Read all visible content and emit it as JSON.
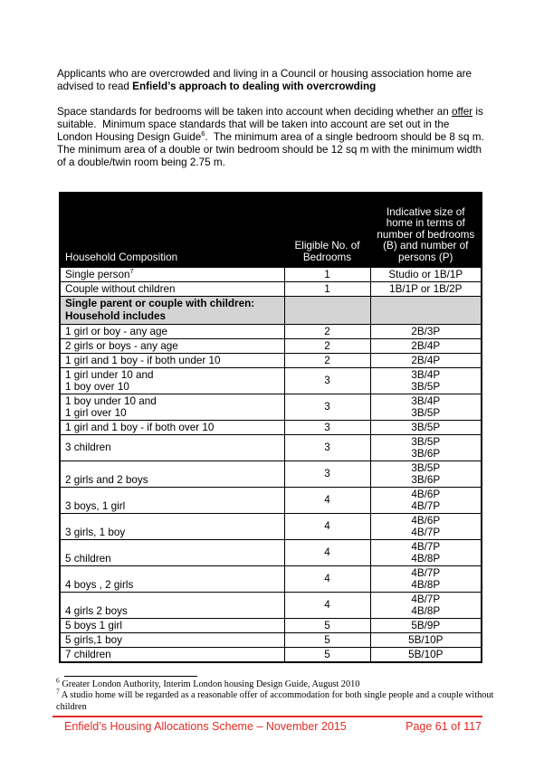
{
  "colors": {
    "accent_red": "#e32b24",
    "header_bg": "#000000",
    "header_text": "#ffffff",
    "section_row_bg": "#d4d4d4"
  },
  "page": {
    "paragraphs": [
      {
        "name": "overcrowding-intro",
        "segments": [
          {
            "text": "Applicants who are overcrowded and living in a Council or housing association home are advised to read "
          },
          {
            "text": "Enfield’s approach to dealing with overcrowding",
            "bold": true
          }
        ]
      },
      {
        "name": "space-standards",
        "segments": [
          {
            "text": "Space standards for bedrooms will be taken into account when deciding whether an "
          },
          {
            "text": "offer",
            "underline": true
          },
          {
            "text": " is suitable.  Minimum space standards that will be taken into account are set out in the London Housing Design Guide"
          },
          {
            "text": "6",
            "sup": true
          },
          {
            "text": ".  The minimum area of a single bedroom should be 8 sq m. The minimum area of a double or twin bedroom should be 12 sq m with the minimum width of a double/twin room being 2.75 m."
          }
        ]
      }
    ]
  },
  "table": {
    "headers": [
      "Household Composition",
      "Eligible No. of Bedrooms",
      "Indicative size of home in terms of number of bedrooms (B) and number of persons (P)"
    ],
    "rows": [
      {
        "label_lines": [
          "Single person"
        ],
        "label_sup": "7",
        "bedrooms": "1",
        "sizes": [
          "Studio or 1B/1P"
        ]
      },
      {
        "label_lines": [
          "Couple without children"
        ],
        "bedrooms": "1",
        "sizes": [
          "1B/1P or 1B/2P"
        ]
      },
      {
        "section": true,
        "label_lines": [
          "Single parent or couple with children:",
          "Household includes"
        ],
        "bedrooms": "",
        "sizes": []
      },
      {
        "label_lines": [
          "1 girl or boy - any age"
        ],
        "bedrooms": "2",
        "sizes": [
          "2B/3P"
        ]
      },
      {
        "label_lines": [
          "2 girls or boys - any age"
        ],
        "bedrooms": "2",
        "sizes": [
          "2B/4P"
        ]
      },
      {
        "label_lines": [
          "1 girl and 1 boy - if both under 10"
        ],
        "bedrooms": "2",
        "sizes": [
          "2B/4P"
        ]
      },
      {
        "label_lines": [
          "1 girl under 10 and",
          "1 boy over 10"
        ],
        "bedrooms": "3",
        "sizes": [
          "3B/4P",
          "3B/5P"
        ]
      },
      {
        "label_lines": [
          "1 boy under 10 and",
          "1 girl over 10"
        ],
        "bedrooms": "3",
        "sizes": [
          "3B/4P",
          "3B/5P"
        ]
      },
      {
        "label_lines": [
          "1 girl and 1 boy - if both over 10"
        ],
        "bedrooms": "3",
        "sizes": [
          "3B/5P"
        ]
      },
      {
        "label_lines": [
          "3 children"
        ],
        "bedrooms": "3",
        "sizes": [
          "3B/5P",
          "3B/6P"
        ]
      },
      {
        "label_lines": [
          "2 girls and 2 boys"
        ],
        "bedrooms": "3",
        "sizes": [
          "3B/5P",
          "3B/6P"
        ],
        "label_valign": "bottom"
      },
      {
        "label_lines": [
          "3 boys, 1 girl"
        ],
        "bedrooms": "4",
        "sizes": [
          "4B/6P",
          "4B/7P"
        ],
        "label_valign": "bottom"
      },
      {
        "label_lines": [
          "3 girls, 1 boy"
        ],
        "bedrooms": "4",
        "sizes": [
          "4B/6P",
          "4B/7P"
        ],
        "label_valign": "bottom"
      },
      {
        "label_lines": [
          "5 children"
        ],
        "bedrooms": "4",
        "sizes": [
          "4B/7P",
          "4B/8P"
        ],
        "label_valign": "bottom"
      },
      {
        "label_lines": [
          "4 boys , 2 girls"
        ],
        "bedrooms": "4",
        "sizes": [
          "4B/7P",
          "4B/8P"
        ],
        "label_valign": "bottom"
      },
      {
        "label_lines": [
          "4 girls 2 boys"
        ],
        "bedrooms": "4",
        "sizes": [
          "4B/7P",
          "4B/8P"
        ],
        "label_valign": "bottom"
      },
      {
        "label_lines": [
          "5 boys 1 girl"
        ],
        "bedrooms": "5",
        "sizes": [
          "5B/9P"
        ]
      },
      {
        "label_lines": [
          "5 girls,1 boy"
        ],
        "bedrooms": "5",
        "sizes": [
          "5B/10P"
        ]
      },
      {
        "label_lines": [
          "7 children"
        ],
        "bedrooms": "5",
        "sizes": [
          "5B/10P"
        ]
      }
    ]
  },
  "footnotes": [
    {
      "marker": "6",
      "text": "Greater London Authority, Interim London housing Design Guide, August 2010"
    },
    {
      "marker": "7",
      "text": "A studio home will be regarded as a reasonable offer of accommodation for both single people and a couple without children"
    }
  ],
  "footer": {
    "left": "Enfield’s Housing Allocations Scheme – November 2015",
    "right": "Page 61 of 117"
  }
}
